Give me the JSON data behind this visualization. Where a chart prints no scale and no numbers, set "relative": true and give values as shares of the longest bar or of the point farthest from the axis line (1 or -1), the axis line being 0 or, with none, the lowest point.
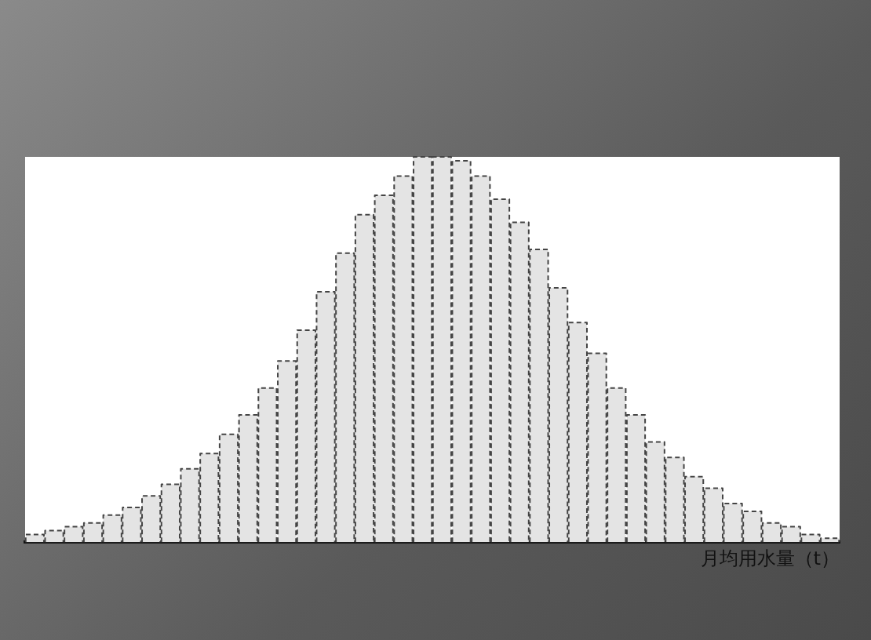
{
  "chart_data": {
    "type": "bar",
    "relative": true,
    "xlabel": "月均用水量（t）",
    "color": "#e4e4e4",
    "line_style": "dashed",
    "grid": false,
    "categories": [
      null,
      null,
      null,
      null,
      null,
      null,
      null,
      null,
      null,
      null,
      null,
      null,
      null,
      null,
      null,
      null,
      null,
      null,
      null,
      null,
      null,
      null,
      null,
      null,
      null,
      null,
      null,
      null,
      null,
      null,
      null,
      null,
      null,
      null,
      null,
      null,
      null,
      null,
      null,
      null,
      null,
      null
    ],
    "values": [
      0.02,
      0.03,
      0.04,
      0.05,
      0.07,
      0.09,
      0.12,
      0.15,
      0.19,
      0.23,
      0.28,
      0.33,
      0.4,
      0.47,
      0.55,
      0.65,
      0.75,
      0.85,
      0.9,
      0.95,
      1,
      1,
      0.99,
      0.95,
      0.89,
      0.83,
      0.76,
      0.66,
      0.57,
      0.49,
      0.4,
      0.33,
      0.26,
      0.22,
      0.17,
      0.14,
      0.1,
      0.08,
      0.05,
      0.04,
      0.02,
      0.01
    ]
  }
}
